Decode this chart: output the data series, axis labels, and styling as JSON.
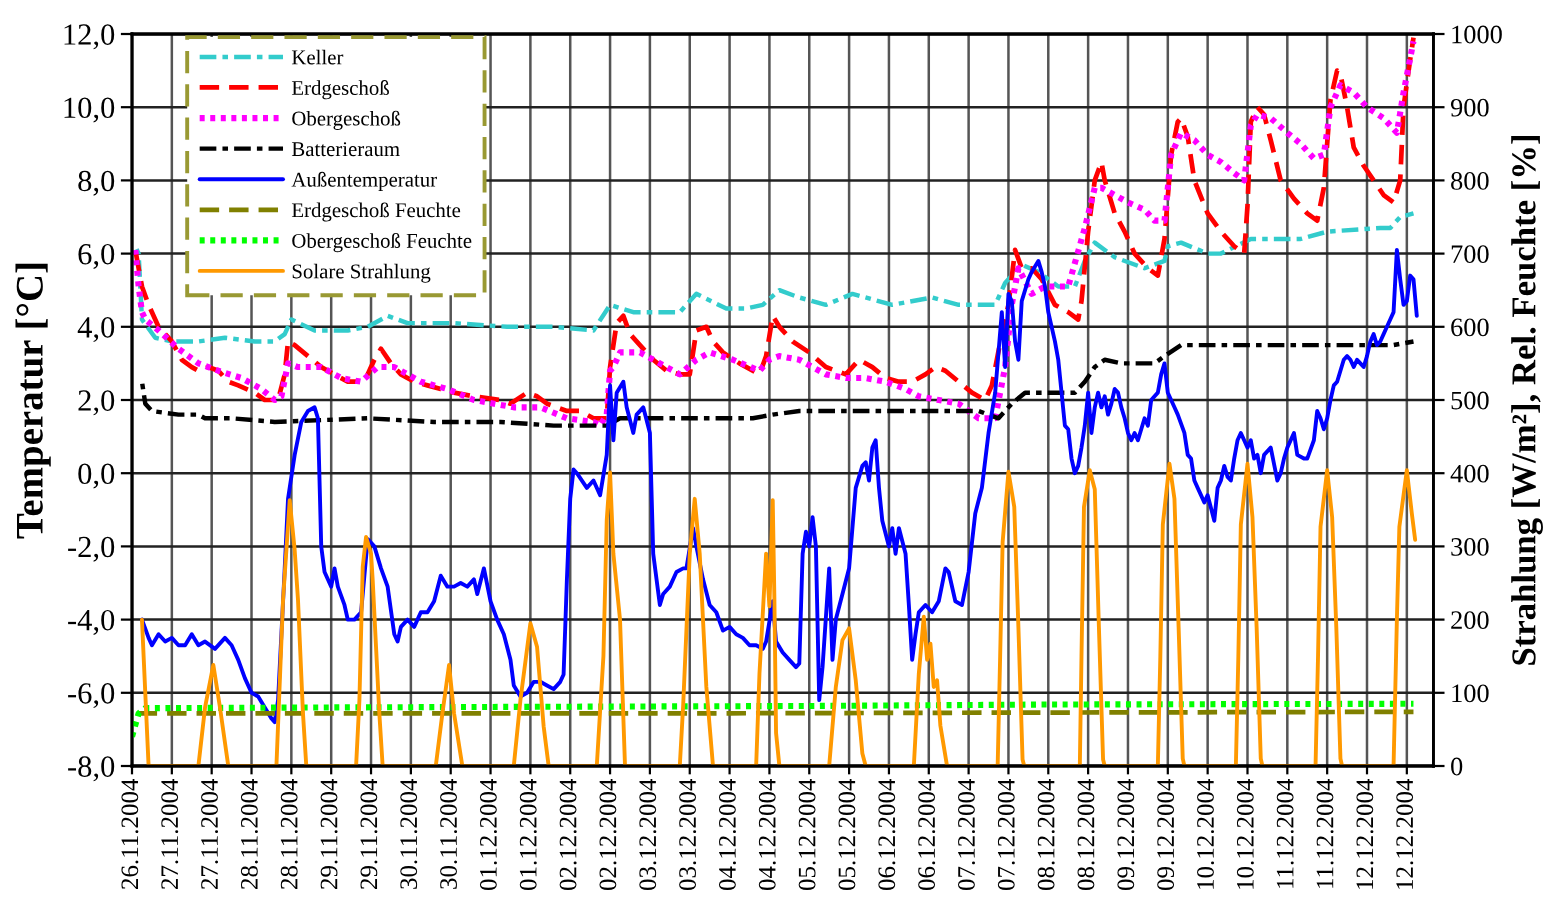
{
  "chart_data": {
    "type": "line",
    "ylabel": "Temperatur [°C]",
    "y2label": "Strahlung [W/m²], Rel. Feuchte [%]",
    "xlim": [
      "2004-11-26T12:00",
      "2004-12-12T20:00"
    ],
    "xticks": [
      {
        "value": "2004-11-26T12:00",
        "label": "26.11.2004"
      },
      {
        "value": "2004-11-27T00:00",
        "label": "27.11.2004"
      },
      {
        "value": "2004-11-27T12:00",
        "label": "27.11.2004"
      },
      {
        "value": "2004-11-28T00:00",
        "label": "28.11.2004"
      },
      {
        "value": "2004-11-28T12:00",
        "label": "28.11.2004"
      },
      {
        "value": "2004-11-29T00:00",
        "label": "29.11.2004"
      },
      {
        "value": "2004-11-29T12:00",
        "label": "29.11.2004"
      },
      {
        "value": "2004-11-30T00:00",
        "label": "30.11.2004"
      },
      {
        "value": "2004-11-30T12:00",
        "label": "30.11.2004"
      },
      {
        "value": "2004-12-01T00:00",
        "label": "01.12.2004"
      },
      {
        "value": "2004-12-01T12:00",
        "label": "01.12.2004"
      },
      {
        "value": "2004-12-02T00:00",
        "label": "02.12.2004"
      },
      {
        "value": "2004-12-02T12:00",
        "label": "02.12.2004"
      },
      {
        "value": "2004-12-03T00:00",
        "label": "03.12.2004"
      },
      {
        "value": "2004-12-03T12:00",
        "label": "03.12.2004"
      },
      {
        "value": "2004-12-04T00:00",
        "label": "04.12.2004"
      },
      {
        "value": "2004-12-04T12:00",
        "label": "04.12.2004"
      },
      {
        "value": "2004-12-05T00:00",
        "label": "05.12.2004"
      },
      {
        "value": "2004-12-05T12:00",
        "label": "05.12.2004"
      },
      {
        "value": "2004-12-06T00:00",
        "label": "06.12.2004"
      },
      {
        "value": "2004-12-06T12:00",
        "label": "06.12.2004"
      },
      {
        "value": "2004-12-07T00:00",
        "label": "07.12.2004"
      },
      {
        "value": "2004-12-07T12:00",
        "label": "07.12.2004"
      },
      {
        "value": "2004-12-08T00:00",
        "label": "08.12.2004"
      },
      {
        "value": "2004-12-08T12:00",
        "label": "08.12.2004"
      },
      {
        "value": "2004-12-09T00:00",
        "label": "09.12.2004"
      },
      {
        "value": "2004-12-09T12:00",
        "label": "09.12.2004"
      },
      {
        "value": "2004-12-10T00:00",
        "label": "10.12.2004"
      },
      {
        "value": "2004-12-10T12:00",
        "label": "10.12.2004"
      },
      {
        "value": "2004-12-11T00:00",
        "label": "11.12.2004"
      },
      {
        "value": "2004-12-11T12:00",
        "label": "11.12.2004"
      },
      {
        "value": "2004-12-12T00:00",
        "label": "12.12.2004"
      },
      {
        "value": "2004-12-12T12:00",
        "label": "12.12.2004"
      }
    ],
    "ylim": [
      -8,
      12
    ],
    "yticks": [
      {
        "value": -8,
        "label": "-8,0"
      },
      {
        "value": -6,
        "label": "-6,0"
      },
      {
        "value": -4,
        "label": "-4,0"
      },
      {
        "value": -2,
        "label": "-2,0"
      },
      {
        "value": 0,
        "label": "0,0"
      },
      {
        "value": 2,
        "label": "2,0"
      },
      {
        "value": 4,
        "label": "4,0"
      },
      {
        "value": 6,
        "label": "6,0"
      },
      {
        "value": 8,
        "label": "8,0"
      },
      {
        "value": 10,
        "label": "10,0"
      },
      {
        "value": 12,
        "label": "12,0"
      }
    ],
    "y2lim": [
      0,
      1000
    ],
    "y2ticks": [
      0,
      100,
      200,
      300,
      400,
      500,
      600,
      700,
      800,
      900,
      1000
    ],
    "grid": true,
    "legend": "top left",
    "series": [
      {
        "name": "Keller",
        "color": "#33cccc",
        "line_style": "dashdot",
        "axis": "y",
        "x": [
          "2004-11-26T13:00",
          "2004-11-26T14:00",
          "2004-11-26T15:00",
          "2004-11-26T19:00",
          "2004-11-27T00:00",
          "2004-11-27T08:00",
          "2004-11-27T16:00",
          "2004-11-28T01:00",
          "2004-11-28T07:00",
          "2004-11-28T10:00",
          "2004-11-28T12:00",
          "2004-11-28T19:00",
          "2004-11-29T05:00",
          "2004-11-29T11:00",
          "2004-11-29T17:00",
          "2004-11-29T23:00",
          "2004-11-30T13:00",
          "2004-12-01T05:00",
          "2004-12-01T19:00",
          "2004-12-02T07:00",
          "2004-12-02T12:00",
          "2004-12-02T19:00",
          "2004-12-03T09:00",
          "2004-12-03T14:00",
          "2004-12-03T23:00",
          "2004-12-04T05:00",
          "2004-12-04T10:00",
          "2004-12-04T15:00",
          "2004-12-04T21:00",
          "2004-12-05T05:00",
          "2004-12-05T13:00",
          "2004-12-06T01:00",
          "2004-12-06T13:00",
          "2004-12-06T21:00",
          "2004-12-07T08:00",
          "2004-12-07T11:00",
          "2004-12-07T16:00",
          "2004-12-07T21:00",
          "2004-12-08T03:00",
          "2004-12-08T08:00",
          "2004-12-08T11:00",
          "2004-12-08T14:00",
          "2004-12-08T20:00",
          "2004-12-09T05:00",
          "2004-12-09T11:00",
          "2004-12-09T12:00",
          "2004-12-09T16:00",
          "2004-12-10T00:00",
          "2004-12-10T04:00",
          "2004-12-10T13:00",
          "2004-12-11T04:00",
          "2004-12-11T12:00",
          "2004-12-12T04:00",
          "2004-12-12T07:00",
          "2004-12-12T10:00",
          "2004-12-12T14:00"
        ],
        "values": [
          6.2,
          6.0,
          4.2,
          3.7,
          3.6,
          3.6,
          3.7,
          3.6,
          3.6,
          3.8,
          4.2,
          3.9,
          3.9,
          4.0,
          4.3,
          4.1,
          4.1,
          4.0,
          4.0,
          3.9,
          4.6,
          4.4,
          4.4,
          4.9,
          4.5,
          4.5,
          4.6,
          5.0,
          4.8,
          4.6,
          4.9,
          4.6,
          4.8,
          4.6,
          4.6,
          5.2,
          5.7,
          5.5,
          5.1,
          5.1,
          5.8,
          6.3,
          5.9,
          5.6,
          5.8,
          6.2,
          6.3,
          6.0,
          6.0,
          6.4,
          6.4,
          6.6,
          6.7,
          6.7,
          7.0,
          7.1
        ]
      },
      {
        "name": "Erdgeschoß",
        "color": "#ff0000",
        "line_style": "dashed",
        "axis": "y",
        "x": [
          "2004-11-26T13:00",
          "2004-11-26T15:00",
          "2004-11-26T17:00",
          "2004-11-26T20:00",
          "2004-11-27T00:00",
          "2004-11-27T03:00",
          "2004-11-27T06:00",
          "2004-11-27T08:00",
          "2004-11-27T11:00",
          "2004-11-27T14:00",
          "2004-11-27T17:00",
          "2004-11-27T20:00",
          "2004-11-28T01:00",
          "2004-11-28T04:00",
          "2004-11-28T08:00",
          "2004-11-28T10:00",
          "2004-11-28T11:00",
          "2004-11-28T13:00",
          "2004-11-28T17:00",
          "2004-11-28T21:00",
          "2004-11-29T01:00",
          "2004-11-29T05:00",
          "2004-11-29T10:00",
          "2004-11-29T13:00",
          "2004-11-29T15:00",
          "2004-11-29T18:00",
          "2004-11-29T21:00",
          "2004-11-30T01:00",
          "2004-11-30T05:00",
          "2004-11-30T09:00",
          "2004-11-30T13:00",
          "2004-11-30T19:00",
          "2004-12-01T03:00",
          "2004-12-01T06:00",
          "2004-12-01T11:00",
          "2004-12-01T14:00",
          "2004-12-01T17:00",
          "2004-12-01T23:00",
          "2004-12-02T03:00",
          "2004-12-02T07:00",
          "2004-12-02T11:00",
          "2004-12-02T12:00",
          "2004-12-02T14:00",
          "2004-12-02T16:00",
          "2004-12-02T18:00",
          "2004-12-02T21:00",
          "2004-12-03T01:00",
          "2004-12-03T05:00",
          "2004-12-03T09:00",
          "2004-12-03T12:00",
          "2004-12-03T14:00",
          "2004-12-03T17:00",
          "2004-12-03T19:00",
          "2004-12-03T22:00",
          "2004-12-04T03:00",
          "2004-12-04T09:00",
          "2004-12-04T11:00",
          "2004-12-04T13:00",
          "2004-12-04T15:00",
          "2004-12-04T19:00",
          "2004-12-05T00:00",
          "2004-12-05T05:00",
          "2004-12-05T11:00",
          "2004-12-05T15:00",
          "2004-12-05T19:00",
          "2004-12-05T23:00",
          "2004-12-06T03:00",
          "2004-12-06T07:00",
          "2004-12-06T11:00",
          "2004-12-06T14:00",
          "2004-12-06T17:00",
          "2004-12-06T21:00",
          "2004-12-07T01:00",
          "2004-12-07T05:00",
          "2004-12-07T07:00",
          "2004-12-07T10:00",
          "2004-12-07T12:00",
          "2004-12-07T14:00",
          "2004-12-07T16:00",
          "2004-12-07T19:00",
          "2004-12-07T22:00",
          "2004-12-08T02:00",
          "2004-12-08T06:00",
          "2004-12-08T09:00",
          "2004-12-08T10:00",
          "2004-12-08T12:00",
          "2004-12-08T14:00",
          "2004-12-08T16:00",
          "2004-12-08T17:00",
          "2004-12-08T20:00",
          "2004-12-08T23:00",
          "2004-12-09T02:00",
          "2004-12-09T06:00",
          "2004-12-09T09:00",
          "2004-12-09T11:00",
          "2004-12-09T13:00",
          "2004-12-09T15:00",
          "2004-12-09T16:00",
          "2004-12-09T18:00",
          "2004-12-09T20:00",
          "2004-12-10T00:00",
          "2004-12-10T04:00",
          "2004-12-10T08:00",
          "2004-12-10T11:00",
          "2004-12-10T12:00",
          "2004-12-10T13:00",
          "2004-12-10T15:00",
          "2004-12-10T17:00",
          "2004-12-10T19:00",
          "2004-12-10T22:00",
          "2004-12-11T02:00",
          "2004-12-11T06:00",
          "2004-12-11T09:00",
          "2004-12-11T11:00",
          "2004-12-11T13:00",
          "2004-12-11T15:00",
          "2004-12-11T16:00",
          "2004-12-11T18:00",
          "2004-12-11T20:00",
          "2004-12-11T23:00",
          "2004-12-12T02:00",
          "2004-12-12T05:00",
          "2004-12-12T08:00",
          "2004-12-12T10:00",
          "2004-12-12T11:00",
          "2004-12-12T13:00",
          "2004-12-12T14:00"
        ],
        "values": [
          6.1,
          5.1,
          4.6,
          4.0,
          3.6,
          3.1,
          2.9,
          2.8,
          2.9,
          2.8,
          2.5,
          2.4,
          2.2,
          2.0,
          2.0,
          2.7,
          3.6,
          3.5,
          3.2,
          2.9,
          2.7,
          2.5,
          2.5,
          3.1,
          3.4,
          3.0,
          2.7,
          2.5,
          2.4,
          2.3,
          2.2,
          2.1,
          2.0,
          1.9,
          2.2,
          2.1,
          1.9,
          1.7,
          1.7,
          1.5,
          1.5,
          2.9,
          4.1,
          4.3,
          3.8,
          3.5,
          3.1,
          2.8,
          2.7,
          2.7,
          3.9,
          4.0,
          3.6,
          3.3,
          3.0,
          2.7,
          3.2,
          4.3,
          4.0,
          3.6,
          3.3,
          2.9,
          2.7,
          3.1,
          2.9,
          2.6,
          2.5,
          2.5,
          2.7,
          2.9,
          2.8,
          2.5,
          2.2,
          2.0,
          2.4,
          3.8,
          4.6,
          6.1,
          5.6,
          5.6,
          5.3,
          4.6,
          4.4,
          4.2,
          4.7,
          6.6,
          8.0,
          8.5,
          8.0,
          7.1,
          6.6,
          6.0,
          5.6,
          5.4,
          6.4,
          8.7,
          9.6,
          9.7,
          9.2,
          8.0,
          7.1,
          6.6,
          6.2,
          6.0,
          7.3,
          9.6,
          10.0,
          9.8,
          9.1,
          8.0,
          7.5,
          7.1,
          6.9,
          7.8,
          10.2,
          11.0,
          10.9,
          10.0,
          8.9,
          8.4,
          8.0,
          7.6,
          7.4,
          8.0,
          10.0,
          11.3,
          11.9
        ]
      },
      {
        "name": "Obergeschoß",
        "color": "#ff00ff",
        "line_style": "dotted",
        "axis": "y",
        "x": [
          "2004-11-26T13:00",
          "2004-11-26T14:00",
          "2004-11-26T15:00",
          "2004-11-26T16:00",
          "2004-11-26T20:00",
          "2004-11-27T02:00",
          "2004-11-27T08:00",
          "2004-11-27T14:00",
          "2004-11-27T21:00",
          "2004-11-28T03:00",
          "2004-11-28T07:00",
          "2004-11-28T09:00",
          "2004-11-28T11:00",
          "2004-11-28T14:00",
          "2004-11-28T21:00",
          "2004-11-29T03:00",
          "2004-11-29T09:00",
          "2004-11-29T14:00",
          "2004-11-29T19:00",
          "2004-11-30T03:00",
          "2004-11-30T11:00",
          "2004-11-30T19:00",
          "2004-12-01T07:00",
          "2004-12-01T15:00",
          "2004-12-01T23:00",
          "2004-12-02T07:00",
          "2004-12-02T09:00",
          "2004-12-02T11:00",
          "2004-12-02T12:00",
          "2004-12-02T13:00",
          "2004-12-02T15:00",
          "2004-12-02T21:00",
          "2004-12-03T03:00",
          "2004-12-03T09:00",
          "2004-12-03T14:00",
          "2004-12-03T18:00",
          "2004-12-04T01:00",
          "2004-12-04T09:00",
          "2004-12-04T12:00",
          "2004-12-04T15:00",
          "2004-12-04T21:00",
          "2004-12-05T05:00",
          "2004-12-05T11:00",
          "2004-12-05T17:00",
          "2004-12-05T23:00",
          "2004-12-06T05:00",
          "2004-12-06T09:00",
          "2004-12-06T15:00",
          "2004-12-06T21:00",
          "2004-12-07T03:00",
          "2004-12-07T08:00",
          "2004-12-07T11:00",
          "2004-12-07T13:00",
          "2004-12-07T15:00",
          "2004-12-07T19:00",
          "2004-12-07T23:00",
          "2004-12-08T03:00",
          "2004-12-08T06:00",
          "2004-12-08T11:00",
          "2004-12-08T14:00",
          "2004-12-08T16:00",
          "2004-12-08T20:00",
          "2004-12-09T00:00",
          "2004-12-09T05:00",
          "2004-12-09T08:00",
          "2004-12-09T11:00",
          "2004-12-09T13:00",
          "2004-12-09T16:00",
          "2004-12-09T20:00",
          "2004-12-10T00:00",
          "2004-12-10T04:00",
          "2004-12-10T08:00",
          "2004-12-10T11:00",
          "2004-12-10T13:00",
          "2004-12-10T15:00",
          "2004-12-10T19:00",
          "2004-12-11T00:00",
          "2004-12-11T04:00",
          "2004-12-11T08:00",
          "2004-12-11T11:00",
          "2004-12-11T13:00",
          "2004-12-11T16:00",
          "2004-12-11T20:00",
          "2004-12-12T00:00",
          "2004-12-12T05:00",
          "2004-12-12T09:00",
          "2004-12-12T11:00",
          "2004-12-12T14:00"
        ],
        "values": [
          6.1,
          5.1,
          4.4,
          4.2,
          3.9,
          3.4,
          3.0,
          2.8,
          2.6,
          2.3,
          2.0,
          2.1,
          3.0,
          2.9,
          2.9,
          2.6,
          2.5,
          2.9,
          2.9,
          2.5,
          2.3,
          2.0,
          1.8,
          1.8,
          1.5,
          1.4,
          1.3,
          1.6,
          2.8,
          2.9,
          3.3,
          3.3,
          3.0,
          2.7,
          3.1,
          3.3,
          3.1,
          2.8,
          3.1,
          3.2,
          3.1,
          2.7,
          2.6,
          2.6,
          2.5,
          2.3,
          2.1,
          2.0,
          1.9,
          1.5,
          1.5,
          2.9,
          4.6,
          5.6,
          4.9,
          5.1,
          5.1,
          5.1,
          6.7,
          7.8,
          7.8,
          7.6,
          7.4,
          7.2,
          6.9,
          6.9,
          8.7,
          9.3,
          9.1,
          8.7,
          8.5,
          8.2,
          8.0,
          9.5,
          9.8,
          9.7,
          9.3,
          9.0,
          8.6,
          8.7,
          10.0,
          10.6,
          10.4,
          10.0,
          9.7,
          9.3,
          10.4,
          11.8
        ]
      },
      {
        "name": "Batterieraum",
        "color": "#000000",
        "line_style": "dashdot",
        "axis": "y",
        "x": [
          "2004-11-26T15:00",
          "2004-11-26T16:00",
          "2004-11-26T18:00",
          "2004-11-27T02:00",
          "2004-11-27T08:00",
          "2004-11-27T10:00",
          "2004-11-27T18:00",
          "2004-11-28T07:00",
          "2004-11-29T11:00",
          "2004-11-30T07:00",
          "2004-12-01T03:00",
          "2004-12-01T19:00",
          "2004-12-02T11:00",
          "2004-12-02T15:00",
          "2004-12-03T19:00",
          "2004-12-04T07:00",
          "2004-12-04T13:00",
          "2004-12-04T21:00",
          "2004-12-06T07:00",
          "2004-12-07T03:00",
          "2004-12-07T09:00",
          "2004-12-07T13:00",
          "2004-12-07T17:00",
          "2004-12-08T08:00",
          "2004-12-08T11:00",
          "2004-12-08T14:00",
          "2004-12-08T17:00",
          "2004-12-08T22:00",
          "2004-12-09T08:00",
          "2004-12-09T11:00",
          "2004-12-09T16:00",
          "2004-12-09T22:00",
          "2004-12-11T00:00",
          "2004-12-12T08:00",
          "2004-12-12T14:00"
        ],
        "values": [
          2.5,
          1.9,
          1.7,
          1.6,
          1.6,
          1.5,
          1.5,
          1.4,
          1.5,
          1.4,
          1.4,
          1.3,
          1.3,
          1.5,
          1.5,
          1.5,
          1.6,
          1.7,
          1.7,
          1.7,
          1.5,
          1.9,
          2.2,
          2.2,
          2.5,
          2.9,
          3.1,
          3.0,
          3.0,
          3.2,
          3.5,
          3.5,
          3.5,
          3.5,
          3.6
        ]
      },
      {
        "name": "Außentemperatur",
        "color": "#0000ff",
        "line_style": "solid",
        "axis": "y",
        "x": [
          "2004-11-26T15:00",
          "2004-11-26T17:00",
          "2004-11-26T18:00",
          "2004-11-26T20:00",
          "2004-11-26T22:00",
          "2004-11-27T00:00",
          "2004-11-27T02:00",
          "2004-11-27T04:00",
          "2004-11-27T06:00",
          "2004-11-27T08:00",
          "2004-11-27T10:00",
          "2004-11-27T13:00",
          "2004-11-27T16:00",
          "2004-11-27T18:00",
          "2004-11-27T20:00",
          "2004-11-27T22:00",
          "2004-11-28T00:00",
          "2004-11-28T02:00",
          "2004-11-28T04:00",
          "2004-11-28T06:00",
          "2004-11-28T07:00",
          "2004-11-28T08:00",
          "2004-11-28T10:00",
          "2004-11-28T11:00",
          "2004-11-28T13:00",
          "2004-11-28T15:00",
          "2004-11-28T17:00",
          "2004-11-28T19:00",
          "2004-11-28T20:00",
          "2004-11-28T21:00",
          "2004-11-28T22:00",
          "2004-11-29T00:00",
          "2004-11-29T01:00",
          "2004-11-29T02:00",
          "2004-11-29T04:00",
          "2004-11-29T05:00",
          "2004-11-29T07:00",
          "2004-11-29T09:00",
          "2004-11-29T11:00",
          "2004-11-29T13:00",
          "2004-11-29T15:00",
          "2004-11-29T17:00",
          "2004-11-29T19:00",
          "2004-11-29T20:00",
          "2004-11-29T21:00",
          "2004-11-29T23:00",
          "2004-11-30T01:00",
          "2004-11-30T03:00",
          "2004-11-30T05:00",
          "2004-11-30T07:00",
          "2004-11-30T09:00",
          "2004-11-30T11:00",
          "2004-11-30T13:00",
          "2004-11-30T15:00",
          "2004-11-30T17:00",
          "2004-11-30T19:00",
          "2004-11-30T20:00",
          "2004-11-30T22:00",
          "2004-12-01T00:00",
          "2004-12-01T02:00",
          "2004-12-01T04:00",
          "2004-12-01T06:00",
          "2004-12-01T07:00",
          "2004-12-01T09:00",
          "2004-12-01T11:00",
          "2004-12-01T13:00",
          "2004-12-01T15:00",
          "2004-12-01T17:00",
          "2004-12-01T19:00",
          "2004-12-01T21:00",
          "2004-12-01T22:00",
          "2004-12-01T23:00",
          "2004-12-02T00:00",
          "2004-12-02T01:00",
          "2004-12-02T02:00",
          "2004-12-02T05:00",
          "2004-12-02T07:00",
          "2004-12-02T09:00",
          "2004-12-02T11:00",
          "2004-12-02T12:00",
          "2004-12-02T13:00",
          "2004-12-02T14:00",
          "2004-12-02T16:00",
          "2004-12-02T17:00",
          "2004-12-02T19:00",
          "2004-12-02T20:00",
          "2004-12-02T22:00",
          "2004-12-03T00:00",
          "2004-12-03T01:00",
          "2004-12-03T03:00",
          "2004-12-03T04:00",
          "2004-12-03T06:00",
          "2004-12-03T08:00",
          "2004-12-03T10:00",
          "2004-12-03T11:00",
          "2004-12-03T13:00",
          "2004-12-03T14:00",
          "2004-12-03T16:00",
          "2004-12-03T18:00",
          "2004-12-03T20:00",
          "2004-12-03T22:00",
          "2004-12-04T00:00",
          "2004-12-04T02:00",
          "2004-12-04T04:00",
          "2004-12-04T06:00",
          "2004-12-04T08:00",
          "2004-12-04T10:00",
          "2004-12-04T11:00",
          "2004-12-04T13:00",
          "2004-12-04T14:00",
          "2004-12-04T16:00",
          "2004-12-04T18:00",
          "2004-12-04T20:00",
          "2004-12-04T21:00",
          "2004-12-04T22:00",
          "2004-12-04T23:00",
          "2004-12-05T00:00",
          "2004-12-05T01:00",
          "2004-12-05T02:00",
          "2004-12-05T03:00",
          "2004-12-05T04:00",
          "2004-12-05T06:00",
          "2004-12-05T07:00",
          "2004-12-05T08:00",
          "2004-12-05T10:00",
          "2004-12-05T12:00",
          "2004-12-05T14:00",
          "2004-12-05T16:00",
          "2004-12-05T17:00",
          "2004-12-05T18:00",
          "2004-12-05T19:00",
          "2004-12-05T20:00",
          "2004-12-05T21:00",
          "2004-12-05T22:00",
          "2004-12-06T00:00",
          "2004-12-06T01:00",
          "2004-12-06T02:00",
          "2004-12-06T03:00",
          "2004-12-06T05:00",
          "2004-12-06T06:00",
          "2004-12-06T07:00",
          "2004-12-06T08:00",
          "2004-12-06T09:00",
          "2004-12-06T11:00",
          "2004-12-06T13:00",
          "2004-12-06T15:00",
          "2004-12-06T17:00",
          "2004-12-06T18:00",
          "2004-12-06T20:00",
          "2004-12-06T22:00",
          "2004-12-07T00:00",
          "2004-12-07T02:00",
          "2004-12-07T04:00",
          "2004-12-07T06:00",
          "2004-12-07T08:00",
          "2004-12-07T10:00",
          "2004-12-07T11:00",
          "2004-12-07T12:00",
          "2004-12-07T13:00",
          "2004-12-07T14:00",
          "2004-12-07T15:00",
          "2004-12-07T16:00",
          "2004-12-07T18:00",
          "2004-12-07T19:00",
          "2004-12-07T21:00",
          "2004-12-07T22:00",
          "2004-12-07T23:00",
          "2004-12-08T00:00",
          "2004-12-08T02:00",
          "2004-12-08T03:00",
          "2004-12-08T04:00",
          "2004-12-08T05:00",
          "2004-12-08T06:00",
          "2004-12-08T07:00",
          "2004-12-08T08:00",
          "2004-12-08T09:00",
          "2004-12-08T10:00",
          "2004-12-08T11:00",
          "2004-12-08T12:00",
          "2004-12-08T13:00",
          "2004-12-08T14:00",
          "2004-12-08T15:00",
          "2004-12-08T16:00",
          "2004-12-08T17:00",
          "2004-12-08T18:00",
          "2004-12-08T19:00",
          "2004-12-08T20:00",
          "2004-12-08T21:00",
          "2004-12-08T22:00",
          "2004-12-08T23:00",
          "2004-12-09T00:00",
          "2004-12-09T01:00",
          "2004-12-09T02:00",
          "2004-12-09T03:00",
          "2004-12-09T05:00",
          "2004-12-09T06:00",
          "2004-12-09T07:00",
          "2004-12-09T09:00",
          "2004-12-09T10:00",
          "2004-12-09T11:00",
          "2004-12-09T12:00",
          "2004-12-09T14:00",
          "2004-12-09T15:00",
          "2004-12-09T17:00",
          "2004-12-09T18:00",
          "2004-12-09T19:00",
          "2004-12-09T20:00",
          "2004-12-09T21:00",
          "2004-12-09T22:00",
          "2004-12-09T23:00",
          "2004-12-10T00:00",
          "2004-12-10T02:00",
          "2004-12-10T03:00",
          "2004-12-10T04:00",
          "2004-12-10T05:00",
          "2004-12-10T06:00",
          "2004-12-10T07:00",
          "2004-12-10T08:00",
          "2004-12-10T09:00",
          "2004-12-10T10:00",
          "2004-12-10T11:00",
          "2004-12-10T12:00",
          "2004-12-10T13:00",
          "2004-12-10T14:00",
          "2004-12-10T15:00",
          "2004-12-10T16:00",
          "2004-12-10T17:00",
          "2004-12-10T19:00",
          "2004-12-10T21:00",
          "2004-12-10T22:00",
          "2004-12-10T23:00",
          "2004-12-11T00:00",
          "2004-12-11T02:00",
          "2004-12-11T03:00",
          "2004-12-11T05:00",
          "2004-12-11T06:00",
          "2004-12-11T08:00",
          "2004-12-11T09:00",
          "2004-12-11T10:00",
          "2004-12-11T11:00",
          "2004-12-11T12:00",
          "2004-12-11T13:00",
          "2004-12-11T14:00",
          "2004-12-11T15:00",
          "2004-12-11T17:00",
          "2004-12-11T18:00",
          "2004-12-11T19:00",
          "2004-12-11T20:00",
          "2004-12-11T21:00",
          "2004-12-11T22:00",
          "2004-12-11T23:00",
          "2004-12-12T00:00",
          "2004-12-12T01:00",
          "2004-12-12T02:00",
          "2004-12-12T03:00",
          "2004-12-12T04:00",
          "2004-12-12T05:00",
          "2004-12-12T06:00",
          "2004-12-12T07:00",
          "2004-12-12T08:00",
          "2004-12-12T09:00",
          "2004-12-12T10:00",
          "2004-12-12T11:00",
          "2004-12-12T12:00",
          "2004-12-12T13:00",
          "2004-12-12T14:00",
          "2004-12-12T15:00"
        ],
        "values": [
          -4.0,
          -4.5,
          -4.7,
          -4.4,
          -4.6,
          -4.5,
          -4.7,
          -4.7,
          -4.4,
          -4.7,
          -4.6,
          -4.8,
          -4.5,
          -4.7,
          -5.1,
          -5.6,
          -6.0,
          -6.1,
          -6.4,
          -6.7,
          -6.8,
          -6.2,
          -2.6,
          -0.7,
          0.5,
          1.4,
          1.7,
          1.8,
          1.5,
          -2.0,
          -2.7,
          -3.1,
          -2.6,
          -3.1,
          -3.6,
          -4.0,
          -4.0,
          -3.8,
          -1.8,
          -2.0,
          -2.6,
          -3.1,
          -4.4,
          -4.6,
          -4.2,
          -4.0,
          -4.2,
          -3.8,
          -3.8,
          -3.5,
          -2.8,
          -3.1,
          -3.1,
          -3.0,
          -3.1,
          -2.9,
          -3.3,
          -2.6,
          -3.5,
          -4.0,
          -4.4,
          -5.1,
          -5.8,
          -6.1,
          -6.0,
          -5.7,
          -5.7,
          -5.8,
          -5.9,
          -5.7,
          -5.5,
          -2.9,
          -0.7,
          0.1,
          0.0,
          -0.4,
          -0.2,
          -0.6,
          0.5,
          2.4,
          0.9,
          2.2,
          2.5,
          1.8,
          1.1,
          1.6,
          1.8,
          1.1,
          -2.2,
          -3.6,
          -3.3,
          -3.1,
          -2.7,
          -2.6,
          -2.6,
          -1.5,
          -2.0,
          -2.9,
          -3.6,
          -3.8,
          -4.3,
          -4.2,
          -4.4,
          -4.5,
          -4.7,
          -4.7,
          -4.8,
          -4.6,
          -3.5,
          -4.6,
          -4.9,
          -5.1,
          -5.3,
          -5.2,
          -2.2,
          -1.6,
          -2.0,
          -1.2,
          -2.0,
          -6.2,
          -5.3,
          -2.6,
          -5.1,
          -4.0,
          -3.3,
          -2.6,
          -0.4,
          0.2,
          0.3,
          -0.2,
          0.7,
          0.9,
          -0.4,
          -1.3,
          -2.0,
          -1.5,
          -2.2,
          -1.5,
          -2.2,
          -3.6,
          -5.1,
          -4.4,
          -3.8,
          -3.6,
          -3.8,
          -3.5,
          -2.6,
          -2.7,
          -3.5,
          -3.6,
          -2.7,
          -1.1,
          -0.4,
          1.1,
          2.2,
          4.4,
          2.9,
          4.9,
          4.7,
          3.6,
          3.1,
          4.7,
          5.3,
          5.5,
          5.8,
          5.5,
          5.1,
          4.4,
          3.6,
          3.1,
          2.2,
          1.3,
          1.2,
          0.4,
          0.0,
          0.2,
          0.7,
          1.3,
          2.2,
          1.1,
          1.8,
          2.2,
          1.8,
          2.1,
          1.6,
          1.9,
          2.3,
          2.2,
          1.8,
          1.5,
          1.1,
          0.9,
          1.1,
          0.9,
          1.5,
          1.3,
          2.0,
          2.2,
          2.7,
          3.0,
          2.2,
          1.8,
          1.6,
          1.1,
          0.5,
          0.4,
          -0.2,
          -0.4,
          -0.6,
          -0.8,
          -0.6,
          -1.3,
          -0.4,
          -0.2,
          0.2,
          -0.1,
          -0.2,
          0.4,
          0.9,
          1.1,
          0.9,
          0.7,
          0.9,
          0.4,
          0.5,
          0.0,
          0.5,
          0.7,
          -0.2,
          0.0,
          0.4,
          0.7,
          1.1,
          0.5,
          0.4,
          0.4,
          0.9,
          1.7,
          1.5,
          1.2,
          1.5,
          2.0,
          2.4,
          2.5,
          3.1,
          3.2,
          3.1,
          2.9,
          3.1,
          3.0,
          2.9,
          3.2,
          3.6,
          3.8,
          3.5,
          3.6,
          3.8,
          4.0,
          4.2,
          4.4,
          6.1,
          5.3,
          4.6,
          4.7,
          5.4,
          5.3,
          4.3
        ]
      },
      {
        "name": "Erdgeschoß Feuchte",
        "color": "#808000",
        "line_style": "dashed",
        "axis": "y2",
        "x": [
          "2004-11-26T13:00",
          "2004-12-04T00:00",
          "2004-12-08T00:00",
          "2004-12-12T14:00"
        ],
        "values": [
          72,
          72,
          73,
          74
        ]
      },
      {
        "name": "Obergeschoß Feuchte",
        "color": "#00ff00",
        "line_style": "dotted",
        "axis": "y2",
        "x": [
          "2004-11-26T12:00",
          "2004-11-26T14:00",
          "2004-11-26T16:00",
          "2004-11-29T00:00",
          "2004-12-02T00:00",
          "2004-12-05T00:00",
          "2004-12-08T00:00",
          "2004-12-12T14:00"
        ],
        "values": [
          40,
          72,
          79,
          80,
          81,
          82,
          84,
          85
        ]
      },
      {
        "name": "Solare Strahlung",
        "color": "#ff9900",
        "line_style": "solid",
        "axis": "y2",
        "x": [
          "2004-11-26T15:00",
          "2004-11-26T17:00",
          "2004-11-27T08:00",
          "2004-11-27T10:00",
          "2004-11-27T12:30",
          "2004-11-27T14:30",
          "2004-11-27T17:00",
          "2004-11-28T07:30",
          "2004-11-28T09:30",
          "2004-11-28T11:30",
          "2004-11-28T13:00",
          "2004-11-28T14:00",
          "2004-11-28T15:30",
          "2004-11-28T16:30",
          "2004-11-29T07:30",
          "2004-11-29T08:30",
          "2004-11-29T09:30",
          "2004-11-29T10:30",
          "2004-11-29T12:00",
          "2004-11-29T12:30",
          "2004-11-29T13:30",
          "2004-11-29T14:30",
          "2004-11-29T15:30",
          "2004-11-30T07:30",
          "2004-11-30T09:30",
          "2004-11-30T11:30",
          "2004-11-30T13:00",
          "2004-11-30T15:30",
          "2004-12-01T07:00",
          "2004-12-01T09:00",
          "2004-12-01T12:00",
          "2004-12-01T14:00",
          "2004-12-01T16:00",
          "2004-12-01T17:30",
          "2004-12-02T08:00",
          "2004-12-02T10:00",
          "2004-12-02T11:00",
          "2004-12-02T12:00",
          "2004-12-02T13:00",
          "2004-12-02T15:00",
          "2004-12-02T16:30",
          "2004-12-03T09:00",
          "2004-12-03T10:00",
          "2004-12-03T12:00",
          "2004-12-03T13:30",
          "2004-12-03T15:00",
          "2004-12-03T17:00",
          "2004-12-03T19:00",
          "2004-12-04T08:00",
          "2004-12-04T09:00",
          "2004-12-04T11:00",
          "2004-12-04T12:00",
          "2004-12-04T13:00",
          "2004-12-04T13:30",
          "2004-12-04T14:00",
          "2004-12-04T15:00",
          "2004-12-05T06:00",
          "2004-12-05T08:00",
          "2004-12-05T10:00",
          "2004-12-05T12:00",
          "2004-12-05T14:00",
          "2004-12-05T16:00",
          "2004-12-05T17:00",
          "2004-12-06T07:30",
          "2004-12-06T09:00",
          "2004-12-06T10:30",
          "2004-12-06T11:30",
          "2004-12-06T12:30",
          "2004-12-06T13:30",
          "2004-12-06T14:30",
          "2004-12-06T15:30",
          "2004-12-06T17:30",
          "2004-12-07T08:45",
          "2004-12-07T09:30",
          "2004-12-07T10:15",
          "2004-12-07T12:00",
          "2004-12-07T13:45",
          "2004-12-07T15:00",
          "2004-12-07T16:15",
          "2004-12-07T16:45",
          "2004-12-08T09:30",
          "2004-12-08T10:00",
          "2004-12-08T10:45",
          "2004-12-08T12:30",
          "2004-12-08T14:00",
          "2004-12-08T15:15",
          "2004-12-08T16:30",
          "2004-12-08T17:00",
          "2004-12-09T09:00",
          "2004-12-09T09:45",
          "2004-12-09T10:30",
          "2004-12-09T12:30",
          "2004-12-09T14:00",
          "2004-12-09T15:15",
          "2004-12-09T16:30",
          "2004-12-09T17:00",
          "2004-12-10T08:30",
          "2004-12-10T09:15",
          "2004-12-10T10:00",
          "2004-12-10T12:00",
          "2004-12-10T13:30",
          "2004-12-10T14:45",
          "2004-12-10T16:00",
          "2004-12-10T16:30",
          "2004-12-11T08:30",
          "2004-12-11T09:15",
          "2004-12-11T10:00",
          "2004-12-11T12:00",
          "2004-12-11T13:30",
          "2004-12-11T14:45",
          "2004-12-11T16:00",
          "2004-12-11T16:30",
          "2004-12-12T08:00",
          "2004-12-12T09:00",
          "2004-12-12T09:45",
          "2004-12-12T12:00",
          "2004-12-12T13:30",
          "2004-12-12T14:30"
        ],
        "values": [
          200,
          0,
          0,
          80,
          138,
          80,
          0,
          0,
          227,
          363,
          295,
          227,
          72,
          0,
          0,
          90,
          272,
          313,
          290,
          254,
          163,
          72,
          0,
          0,
          72,
          138,
          72,
          0,
          0,
          90,
          195,
          163,
          54,
          0,
          0,
          150,
          336,
          401,
          290,
          200,
          0,
          0,
          81,
          290,
          365,
          290,
          108,
          0,
          0,
          126,
          290,
          218,
          363,
          227,
          45,
          0,
          0,
          108,
          172,
          188,
          117,
          17,
          0,
          0,
          126,
          204,
          145,
          167,
          108,
          117,
          55,
          0,
          0,
          150,
          306,
          402,
          354,
          189,
          9,
          0,
          0,
          150,
          354,
          404,
          378,
          189,
          9,
          0,
          0,
          150,
          330,
          413,
          365,
          190,
          10,
          0,
          0,
          150,
          330,
          413,
          340,
          190,
          10,
          0,
          0,
          150,
          327,
          404,
          340,
          190,
          10,
          0,
          0,
          200,
          327,
          404,
          345,
          309
        ]
      }
    ]
  }
}
